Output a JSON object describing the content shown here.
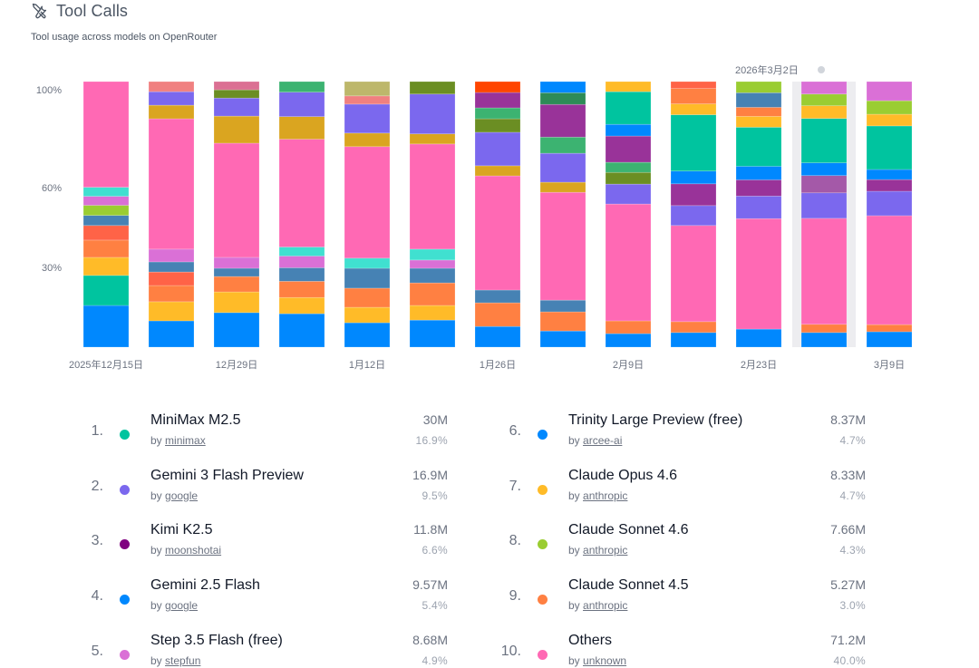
{
  "header": {
    "icon": "tools-icon",
    "title": "Tool Calls",
    "subtitle": "Tool usage across models on OpenRouter"
  },
  "tooltip": {
    "date": "2026年3月2日",
    "hovered_index": 11,
    "highlight_color": "#ededf0"
  },
  "chart_data": {
    "type": "bar",
    "stacked": true,
    "normalized": true,
    "title": "Tool Calls",
    "xlabel": "",
    "ylabel": "",
    "ylim": [
      0,
      100
    ],
    "yticks": [
      {
        "value": 100,
        "label": "100%"
      },
      {
        "value": 60,
        "label": "60%"
      },
      {
        "value": 30,
        "label": "30%"
      }
    ],
    "grid": false,
    "categories": [
      "2025-12-15",
      "2025-12-22",
      "2025-12-29",
      "2026-01-05",
      "2026-01-12",
      "2026-01-19",
      "2026-01-26",
      "2026-02-02",
      "2026-02-09",
      "2026-02-16",
      "2026-02-23",
      "2026-03-02",
      "2026-03-09"
    ],
    "xtick_labels": [
      "2025年12月15日",
      "",
      "12月29日",
      "",
      "1月12日",
      "",
      "1月26日",
      "",
      "2月9日",
      "",
      "2月23日",
      "",
      "3月9日"
    ],
    "bars": [
      {
        "segments": [
          {
            "color": "#0088FE",
            "value": 15.7
          },
          {
            "color": "#00C49F",
            "value": 11.3
          },
          {
            "color": "#FFBB28",
            "value": 6.8
          },
          {
            "color": "#FF8042",
            "value": 6.5
          },
          {
            "color": "#FF6347",
            "value": 5.5
          },
          {
            "color": "#4682B4",
            "value": 3.8
          },
          {
            "color": "#9ACD32",
            "value": 3.8
          },
          {
            "color": "#DA70D6",
            "value": 3.4
          },
          {
            "color": "#40E0D0",
            "value": 3.4
          },
          {
            "color": "#FF69B4",
            "value": 39.8
          }
        ]
      },
      {
        "segments": [
          {
            "color": "#0088FE",
            "value": 9.9
          },
          {
            "color": "#FFBB28",
            "value": 7.2
          },
          {
            "color": "#FF8042",
            "value": 6.1
          },
          {
            "color": "#FF6347",
            "value": 5.1
          },
          {
            "color": "#4682B4",
            "value": 3.8
          },
          {
            "color": "#DA70D6",
            "value": 4.8
          },
          {
            "color": "#FF69B4",
            "value": 49.1
          },
          {
            "color": "#DAA520",
            "value": 5.1
          },
          {
            "color": "#7B68EE",
            "value": 5.1
          },
          {
            "color": "#F08080",
            "value": 3.8
          }
        ]
      },
      {
        "segments": [
          {
            "color": "#0088FE",
            "value": 13.0
          },
          {
            "color": "#FFBB28",
            "value": 7.8
          },
          {
            "color": "#FF8042",
            "value": 5.8
          },
          {
            "color": "#4682B4",
            "value": 3.1
          },
          {
            "color": "#DA70D6",
            "value": 4.1
          },
          {
            "color": "#FF69B4",
            "value": 43.0
          },
          {
            "color": "#DAA520",
            "value": 10.2
          },
          {
            "color": "#7B68EE",
            "value": 6.8
          },
          {
            "color": "#6B8E23",
            "value": 3.1
          },
          {
            "color": "#DB7093",
            "value": 3.1
          }
        ]
      },
      {
        "segments": [
          {
            "color": "#0088FE",
            "value": 12.6
          },
          {
            "color": "#FFBB28",
            "value": 6.1
          },
          {
            "color": "#FF8042",
            "value": 6.1
          },
          {
            "color": "#4682B4",
            "value": 5.1
          },
          {
            "color": "#DA70D6",
            "value": 4.4
          },
          {
            "color": "#40E0D0",
            "value": 3.4
          },
          {
            "color": "#FF69B4",
            "value": 40.6
          },
          {
            "color": "#DAA520",
            "value": 8.5
          },
          {
            "color": "#7B68EE",
            "value": 9.2
          },
          {
            "color": "#3CB371",
            "value": 4.0
          }
        ]
      },
      {
        "segments": [
          {
            "color": "#0088FE",
            "value": 9.2
          },
          {
            "color": "#FFBB28",
            "value": 5.8
          },
          {
            "color": "#FF8042",
            "value": 7.2
          },
          {
            "color": "#4682B4",
            "value": 7.5
          },
          {
            "color": "#40E0D0",
            "value": 3.8
          },
          {
            "color": "#FF69B4",
            "value": 42.0
          },
          {
            "color": "#DAA520",
            "value": 5.1
          },
          {
            "color": "#7B68EE",
            "value": 10.9
          },
          {
            "color": "#F08080",
            "value": 3.1
          },
          {
            "color": "#BDB76B",
            "value": 5.4
          }
        ]
      },
      {
        "segments": [
          {
            "color": "#0088FE",
            "value": 10.2
          },
          {
            "color": "#FFBB28",
            "value": 5.5
          },
          {
            "color": "#FF8042",
            "value": 8.5
          },
          {
            "color": "#4682B4",
            "value": 5.5
          },
          {
            "color": "#DA70D6",
            "value": 3.1
          },
          {
            "color": "#40E0D0",
            "value": 4.1
          },
          {
            "color": "#FF69B4",
            "value": 39.6
          },
          {
            "color": "#DAA520",
            "value": 3.8
          },
          {
            "color": "#7B68EE",
            "value": 15.0
          },
          {
            "color": "#6B8E23",
            "value": 4.7
          }
        ]
      },
      {
        "segments": [
          {
            "color": "#0088FE",
            "value": 7.8
          },
          {
            "color": "#FF8042",
            "value": 8.9
          },
          {
            "color": "#4682B4",
            "value": 4.8
          },
          {
            "color": "#FF69B4",
            "value": 43.0
          },
          {
            "color": "#DAA520",
            "value": 3.8
          },
          {
            "color": "#7B68EE",
            "value": 12.6
          },
          {
            "color": "#6B8E23",
            "value": 5.1
          },
          {
            "color": "#3CB371",
            "value": 4.1
          },
          {
            "color": "#993399",
            "value": 5.8
          },
          {
            "color": "#FF4500",
            "value": 4.1
          }
        ]
      },
      {
        "segments": [
          {
            "color": "#0088FE",
            "value": 6.1
          },
          {
            "color": "#FF8042",
            "value": 7.2
          },
          {
            "color": "#4682B4",
            "value": 4.4
          },
          {
            "color": "#FF69B4",
            "value": 40.6
          },
          {
            "color": "#DAA520",
            "value": 3.8
          },
          {
            "color": "#7B68EE",
            "value": 10.9
          },
          {
            "color": "#3CB371",
            "value": 6.1
          },
          {
            "color": "#993399",
            "value": 12.3
          },
          {
            "color": "#2E8B57",
            "value": 4.4
          },
          {
            "color": "#0088FE",
            "value": 4.2
          }
        ]
      },
      {
        "segments": [
          {
            "color": "#0088FE",
            "value": 5.1
          },
          {
            "color": "#FF8042",
            "value": 4.8
          },
          {
            "color": "#FF69B4",
            "value": 44.0
          },
          {
            "color": "#7B68EE",
            "value": 7.5
          },
          {
            "color": "#6B8E23",
            "value": 4.4
          },
          {
            "color": "#3CB371",
            "value": 3.8
          },
          {
            "color": "#993399",
            "value": 9.9
          },
          {
            "color": "#0088FE",
            "value": 4.4
          },
          {
            "color": "#00C49F",
            "value": 12.3
          },
          {
            "color": "#FFBB28",
            "value": 3.8
          }
        ]
      },
      {
        "segments": [
          {
            "color": "#0088FE",
            "value": 5.5
          },
          {
            "color": "#FF8042",
            "value": 4.1
          },
          {
            "color": "#FF69B4",
            "value": 36.2
          },
          {
            "color": "#7B68EE",
            "value": 7.5
          },
          {
            "color": "#993399",
            "value": 8.2
          },
          {
            "color": "#0088FE",
            "value": 4.8
          },
          {
            "color": "#00C49F",
            "value": 21.2
          },
          {
            "color": "#FFBB28",
            "value": 4.1
          },
          {
            "color": "#FF8042",
            "value": 5.8
          },
          {
            "color": "#FF6347",
            "value": 2.6
          }
        ]
      },
      {
        "segments": [
          {
            "color": "#0088FE",
            "value": 6.8
          },
          {
            "color": "#FF69B4",
            "value": 41.6
          },
          {
            "color": "#7B68EE",
            "value": 8.5
          },
          {
            "color": "#993399",
            "value": 6.1
          },
          {
            "color": "#0088FE",
            "value": 5.1
          },
          {
            "color": "#00C49F",
            "value": 14.7
          },
          {
            "color": "#FFBB28",
            "value": 4.1
          },
          {
            "color": "#FF8042",
            "value": 3.4
          },
          {
            "color": "#4682B4",
            "value": 5.5
          },
          {
            "color": "#9ACD32",
            "value": 4.2
          }
        ]
      },
      {
        "segments": [
          {
            "color": "#0088FE",
            "value": 5.5
          },
          {
            "color": "#FF8042",
            "value": 3.1
          },
          {
            "color": "#FF69B4",
            "value": 39.9
          },
          {
            "color": "#7B68EE",
            "value": 9.6
          },
          {
            "color": "#A459A8",
            "value": 6.5
          },
          {
            "color": "#0088FE",
            "value": 4.8
          },
          {
            "color": "#00C49F",
            "value": 16.7
          },
          {
            "color": "#FFBB28",
            "value": 4.8
          },
          {
            "color": "#9ACD32",
            "value": 4.4
          },
          {
            "color": "#DA70D6",
            "value": 4.7
          }
        ]
      },
      {
        "segments": [
          {
            "color": "#0088FE",
            "value": 5.8
          },
          {
            "color": "#FF8042",
            "value": 2.7
          },
          {
            "color": "#FF69B4",
            "value": 41.0
          },
          {
            "color": "#7B68EE",
            "value": 9.2
          },
          {
            "color": "#993399",
            "value": 4.4
          },
          {
            "color": "#0088FE",
            "value": 3.8
          },
          {
            "color": "#00C49F",
            "value": 16.4
          },
          {
            "color": "#FFBB28",
            "value": 4.4
          },
          {
            "color": "#9ACD32",
            "value": 5.1
          },
          {
            "color": "#DA70D6",
            "value": 7.2
          }
        ]
      }
    ]
  },
  "legend": [
    {
      "rank": "1.",
      "name": "MiniMax M2.5",
      "by": "by",
      "author": "minimax",
      "value": "30M",
      "pct": "16.9%",
      "color": "#00C49F"
    },
    {
      "rank": "2.",
      "name": "Gemini 3 Flash Preview",
      "by": "by",
      "author": "google",
      "value": "16.9M",
      "pct": "9.5%",
      "color": "#7B68EE"
    },
    {
      "rank": "3.",
      "name": "Kimi K2.5",
      "by": "by",
      "author": "moonshotai",
      "value": "11.8M",
      "pct": "6.6%",
      "color": "#800080"
    },
    {
      "rank": "4.",
      "name": "Gemini 2.5 Flash",
      "by": "by",
      "author": "google",
      "value": "9.57M",
      "pct": "5.4%",
      "color": "#0088FE"
    },
    {
      "rank": "5.",
      "name": "Step 3.5 Flash (free)",
      "by": "by",
      "author": "stepfun",
      "value": "8.68M",
      "pct": "4.9%",
      "color": "#DA70D6"
    },
    {
      "rank": "6.",
      "name": "Trinity Large Preview (free)",
      "by": "by",
      "author": "arcee-ai",
      "value": "8.37M",
      "pct": "4.7%",
      "color": "#0088FE"
    },
    {
      "rank": "7.",
      "name": "Claude Opus 4.6",
      "by": "by",
      "author": "anthropic",
      "value": "8.33M",
      "pct": "4.7%",
      "color": "#FFBB28"
    },
    {
      "rank": "8.",
      "name": "Claude Sonnet 4.6",
      "by": "by",
      "author": "anthropic",
      "value": "7.66M",
      "pct": "4.3%",
      "color": "#9ACD32"
    },
    {
      "rank": "9.",
      "name": "Claude Sonnet 4.5",
      "by": "by",
      "author": "anthropic",
      "value": "5.27M",
      "pct": "3.0%",
      "color": "#FF8042"
    },
    {
      "rank": "10.",
      "name": "Others",
      "by": "by",
      "author": "unknown",
      "value": "71.2M",
      "pct": "40.0%",
      "color": "#FF69B4"
    }
  ]
}
